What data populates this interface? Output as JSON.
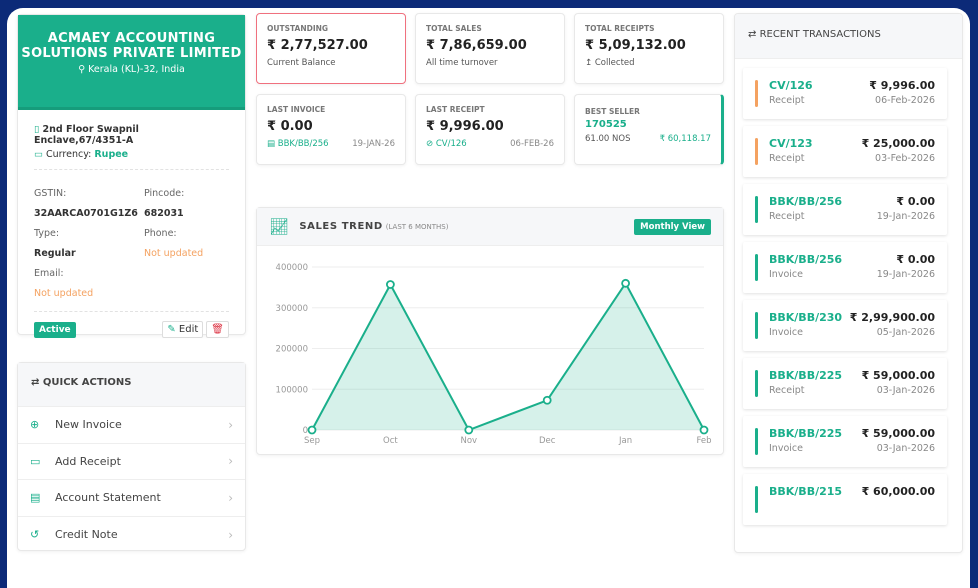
{
  "colors": {
    "brand": "#1aaf8b",
    "frame": "#0c2a78",
    "receipt_bar": "#f4a261",
    "invoice_bar": "#1aaf8b",
    "outstanding_border": "#f0707e"
  },
  "company": {
    "name": "ACMAEY ACCOUNTING SOLUTIONS PRIVATE LIMITED",
    "location": "Kerala (KL)-32, India",
    "address": "2nd Floor Swapnil Enclave,67/4351-A",
    "currency_label": "Currency:",
    "currency": "Rupee",
    "gstin_label": "GSTIN:",
    "gstin": "32AARCA0701G1Z6",
    "pincode_label": "Pincode:",
    "pincode": "682031",
    "type_label": "Type:",
    "type": "Regular",
    "phone_label": "Phone:",
    "phone": "Not updated",
    "email_label": "Email:",
    "email": "Not updated",
    "status": "Active",
    "edit": "Edit"
  },
  "quick_actions": {
    "title": "QUICK ACTIONS",
    "items": [
      {
        "label": "New Invoice",
        "icon": "plus-circle-icon"
      },
      {
        "label": "Add Receipt",
        "icon": "money-icon"
      },
      {
        "label": "Account Statement",
        "icon": "document-icon"
      },
      {
        "label": "Credit Note",
        "icon": "history-icon"
      }
    ]
  },
  "stats": {
    "outstanding": {
      "title": "OUTSTANDING",
      "value": "₹ 2,77,527.00",
      "sub": "Current Balance"
    },
    "total_sales": {
      "title": "TOTAL SALES",
      "value": "₹ 7,86,659.00",
      "sub": "All time turnover"
    },
    "total_receipts": {
      "title": "TOTAL RECEIPTS",
      "value": "₹ 5,09,132.00",
      "sub": "Collected"
    },
    "last_invoice": {
      "title": "LAST INVOICE",
      "value": "₹ 0.00",
      "ref": "BBK/BB/256",
      "date": "19-JAN-26"
    },
    "last_receipt": {
      "title": "LAST RECEIPT",
      "value": "₹ 9,996.00",
      "ref": "CV/126",
      "date": "06-FEB-26"
    },
    "best_seller": {
      "title": "BEST SELLER",
      "item": "170525",
      "qty": "61.00 NOS",
      "amount": "₹ 60,118.17"
    }
  },
  "sales_trend": {
    "title": "SALES TREND",
    "subtitle": "(LAST 6 MONTHS)",
    "button": "Monthly View"
  },
  "chart_data": {
    "type": "area",
    "categories": [
      "Sep",
      "Oct",
      "Nov",
      "Dec",
      "Jan",
      "Feb"
    ],
    "values": [
      0,
      357000,
      0,
      73000,
      360000,
      0
    ],
    "yticks": [
      "0",
      "100000",
      "200000",
      "300000",
      "400000"
    ],
    "ylim": [
      0,
      400000
    ],
    "grid": true
  },
  "recent": {
    "title": "RECENT TRANSACTIONS",
    "items": [
      {
        "no": "CV/126",
        "type": "Receipt",
        "amount": "₹ 9,996.00",
        "date": "06-Feb-2026"
      },
      {
        "no": "CV/123",
        "type": "Receipt",
        "amount": "₹ 25,000.00",
        "date": "03-Feb-2026"
      },
      {
        "no": "BBK/BB/256",
        "type": "Receipt",
        "amount": "₹ 0.00",
        "date": "19-Jan-2026"
      },
      {
        "no": "BBK/BB/256",
        "type": "Invoice",
        "amount": "₹ 0.00",
        "date": "19-Jan-2026"
      },
      {
        "no": "BBK/BB/230",
        "type": "Invoice",
        "amount": "₹ 2,99,900.00",
        "date": "05-Jan-2026"
      },
      {
        "no": "BBK/BB/225",
        "type": "Receipt",
        "amount": "₹ 59,000.00",
        "date": "03-Jan-2026"
      },
      {
        "no": "BBK/BB/225",
        "type": "Invoice",
        "amount": "₹ 59,000.00",
        "date": "03-Jan-2026"
      },
      {
        "no": "BBK/BB/215",
        "type": "",
        "amount": "₹ 60,000.00",
        "date": ""
      }
    ]
  }
}
